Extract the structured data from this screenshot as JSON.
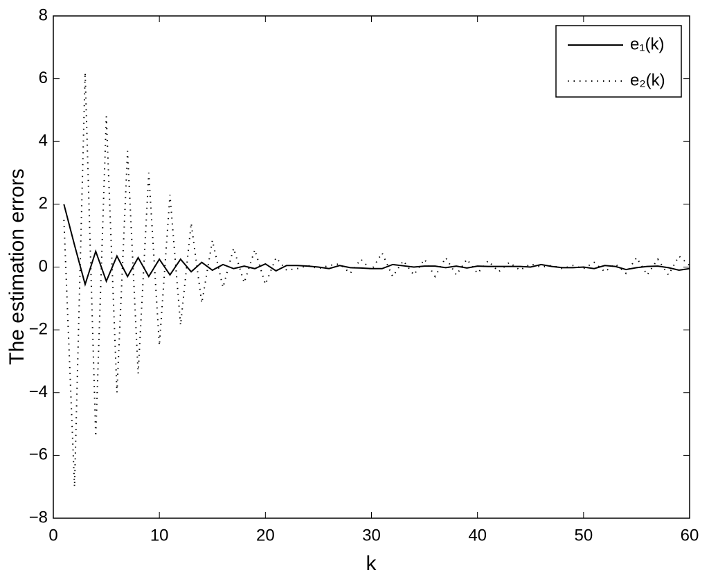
{
  "chart_data": {
    "type": "line",
    "xlabel": "k",
    "ylabel": "The estimation errors",
    "x": [
      1,
      2,
      3,
      4,
      5,
      6,
      7,
      8,
      9,
      10,
      11,
      12,
      13,
      14,
      15,
      16,
      17,
      18,
      19,
      20,
      21,
      22,
      23,
      24,
      25,
      26,
      27,
      28,
      29,
      30,
      31,
      32,
      33,
      34,
      35,
      36,
      37,
      38,
      39,
      40,
      41,
      42,
      43,
      44,
      45,
      46,
      47,
      48,
      49,
      50,
      51,
      52,
      53,
      54,
      55,
      56,
      57,
      58,
      59,
      60
    ],
    "series": [
      {
        "name": "e₁(k)",
        "color": "#000000",
        "style": "solid",
        "values": [
          2.0,
          0.7,
          -0.55,
          0.5,
          -0.45,
          0.35,
          -0.3,
          0.3,
          -0.3,
          0.25,
          -0.25,
          0.25,
          -0.15,
          0.15,
          -0.1,
          0.08,
          -0.05,
          0.03,
          -0.05,
          0.1,
          -0.12,
          0.05,
          0.05,
          0.03,
          0,
          -0.05,
          0.05,
          -0.02,
          -0.03,
          -0.05,
          -0.05,
          0.08,
          0.04,
          0,
          0.03,
          0.03,
          -0.02,
          0.03,
          -0.03,
          0.03,
          0.02,
          0.02,
          0.02,
          0.02,
          0,
          0.08,
          0.02,
          -0.02,
          -0.02,
          0,
          -0.05,
          0.05,
          0.02,
          -0.08,
          -0.02,
          0.02,
          0.03,
          -0.02,
          -0.1,
          -0.05
        ]
      },
      {
        "name": "e₂(k)",
        "color": "#000000",
        "style": "dotted",
        "values": [
          1.5,
          -7.0,
          6.2,
          -5.4,
          4.8,
          -4.0,
          3.7,
          -3.4,
          3.0,
          -2.5,
          2.3,
          -1.85,
          1.4,
          -1.15,
          0.85,
          -0.65,
          0.6,
          -0.5,
          0.55,
          -0.55,
          0.3,
          -0.1,
          -0.05,
          0.05,
          -0.05,
          0.05,
          0.1,
          -0.2,
          0.25,
          -0.1,
          0.45,
          -0.3,
          0.2,
          -0.25,
          0.25,
          -0.3,
          0.3,
          -0.25,
          0.25,
          -0.2,
          0.2,
          -0.15,
          0.15,
          -0.1,
          0.1,
          0,
          0.05,
          -0.05,
          0.05,
          -0.05,
          0.15,
          -0.15,
          0.1,
          -0.2,
          0.3,
          -0.25,
          0.25,
          -0.25,
          0.35,
          0.05
        ]
      }
    ],
    "xlim": [
      0,
      60
    ],
    "xticks": [
      0,
      10,
      20,
      30,
      40,
      50,
      60
    ],
    "ylim": [
      -8,
      8
    ],
    "yticks": [
      {
        "value": -8,
        "label": "−8"
      },
      {
        "value": -6,
        "label": "−6"
      },
      {
        "value": -4,
        "label": "−4"
      },
      {
        "value": -2,
        "label": "−2"
      },
      0,
      2,
      4,
      6,
      8
    ],
    "grid": false,
    "legend": "northeast"
  }
}
